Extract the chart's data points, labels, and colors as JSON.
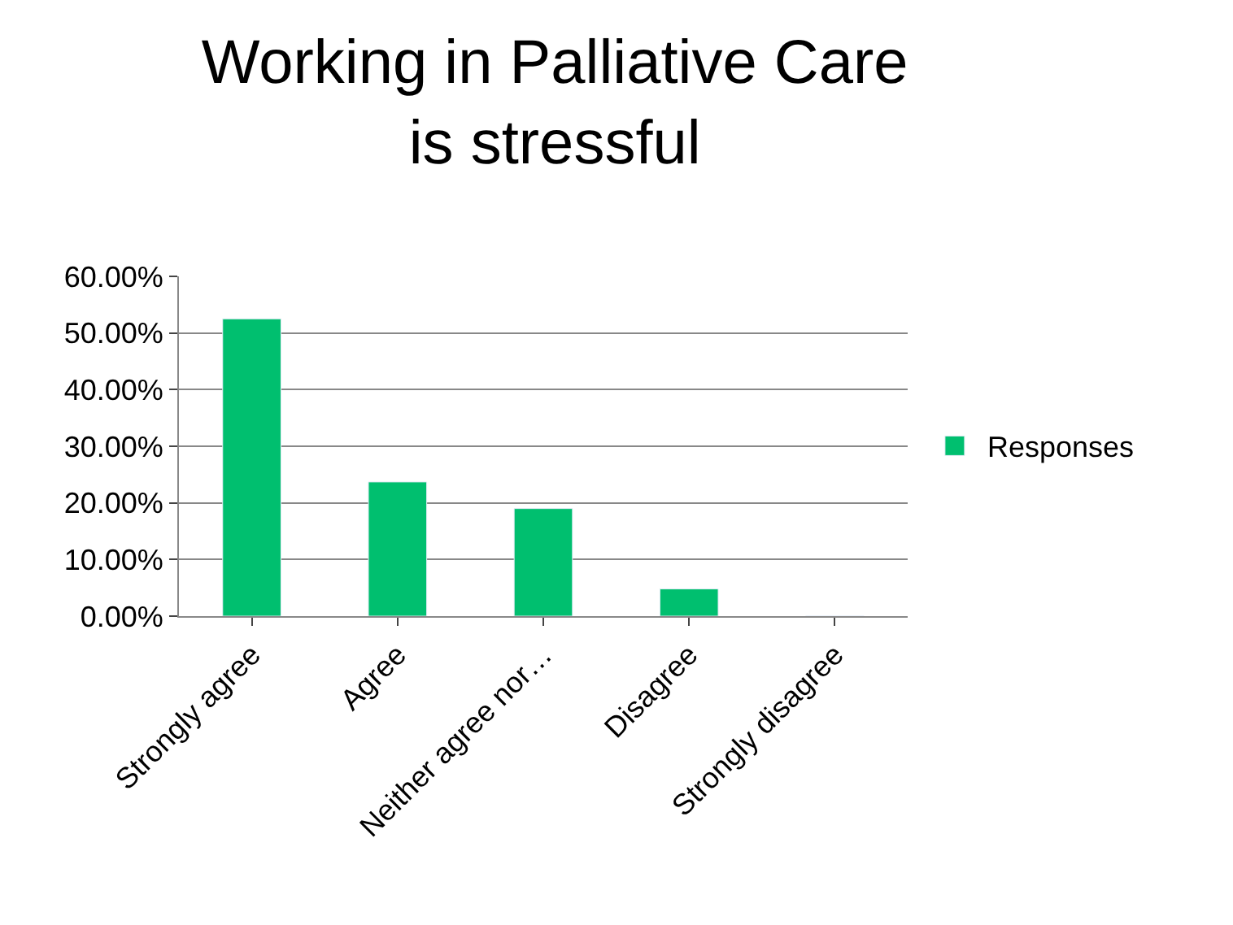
{
  "chart_data": {
    "type": "bar",
    "title": "Working in Palliative Care\nis stressful",
    "categories": [
      "Strongly agree",
      "Agree",
      "Neither agree nor…",
      "Disagree",
      "Strongly disagree"
    ],
    "series": [
      {
        "name": "Responses",
        "color": "#00bf6f",
        "values": [
          52.5,
          23.7,
          19.0,
          4.8,
          0
        ]
      }
    ],
    "ylim": [
      0,
      60
    ],
    "yticks": [
      {
        "value": 0,
        "label": "0.00%"
      },
      {
        "value": 10,
        "label": "10.00%"
      },
      {
        "value": 20,
        "label": "20.00%"
      },
      {
        "value": 30,
        "label": "30.00%"
      },
      {
        "value": 40,
        "label": "40.00%"
      },
      {
        "value": 50,
        "label": "50.00%"
      },
      {
        "value": 60,
        "label": "60.00%"
      }
    ],
    "grid": "y",
    "legend": "right"
  }
}
